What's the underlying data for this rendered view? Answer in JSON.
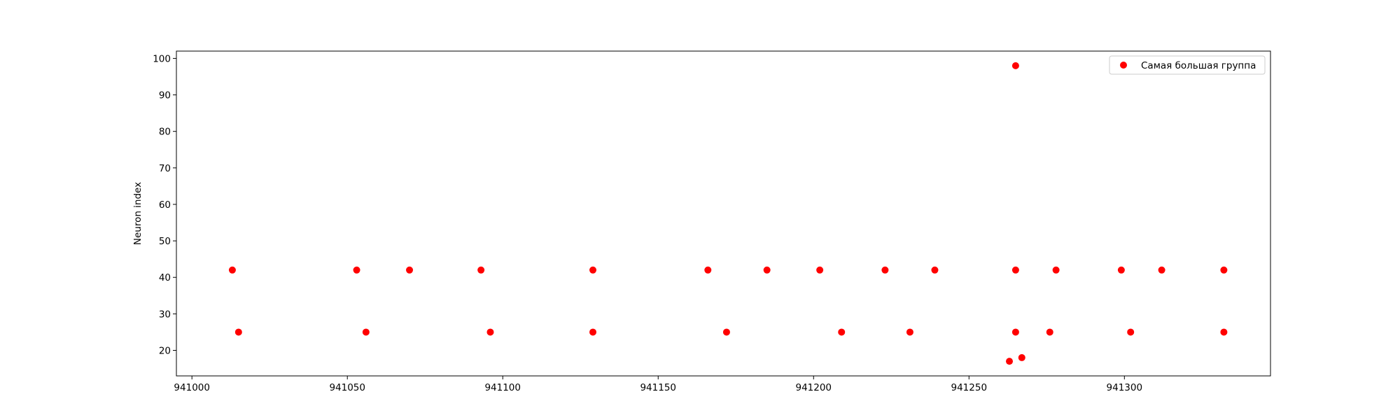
{
  "chart_data": {
    "type": "scatter",
    "title": "",
    "xlabel": "",
    "ylabel": "Neuron index",
    "xlim": [
      940995,
      941347
    ],
    "ylim": [
      13,
      102
    ],
    "xticks": [
      941000,
      941050,
      941100,
      941150,
      941200,
      941250,
      941300
    ],
    "yticks": [
      20,
      30,
      40,
      50,
      60,
      70,
      80,
      90,
      100
    ],
    "grid": false,
    "legend_position": "top-right",
    "series": [
      {
        "name": "Самая большая группа",
        "color": "#ff0000",
        "marker": "circle",
        "points": [
          {
            "x": 941013,
            "y": 42
          },
          {
            "x": 941015,
            "y": 25
          },
          {
            "x": 941053,
            "y": 42
          },
          {
            "x": 941056,
            "y": 25
          },
          {
            "x": 941070,
            "y": 42
          },
          {
            "x": 941093,
            "y": 42
          },
          {
            "x": 941096,
            "y": 25
          },
          {
            "x": 941129,
            "y": 42
          },
          {
            "x": 941129,
            "y": 25
          },
          {
            "x": 941166,
            "y": 42
          },
          {
            "x": 941172,
            "y": 25
          },
          {
            "x": 941185,
            "y": 42
          },
          {
            "x": 941202,
            "y": 42
          },
          {
            "x": 941209,
            "y": 25
          },
          {
            "x": 941223,
            "y": 42
          },
          {
            "x": 941231,
            "y": 25
          },
          {
            "x": 941239,
            "y": 42
          },
          {
            "x": 941263,
            "y": 17
          },
          {
            "x": 941265,
            "y": 98
          },
          {
            "x": 941265,
            "y": 42
          },
          {
            "x": 941265,
            "y": 25
          },
          {
            "x": 941267,
            "y": 18
          },
          {
            "x": 941276,
            "y": 25
          },
          {
            "x": 941278,
            "y": 42
          },
          {
            "x": 941299,
            "y": 42
          },
          {
            "x": 941302,
            "y": 25
          },
          {
            "x": 941312,
            "y": 42
          },
          {
            "x": 941332,
            "y": 42
          },
          {
            "x": 941332,
            "y": 25
          }
        ]
      }
    ]
  }
}
